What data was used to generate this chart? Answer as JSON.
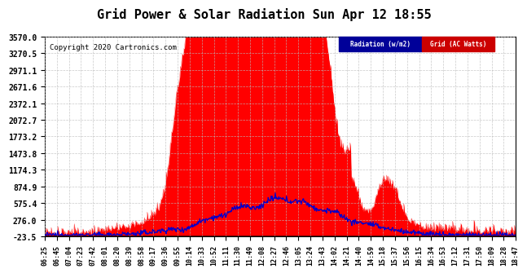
{
  "title": "Grid Power & Solar Radiation Sun Apr 12 18:55",
  "copyright": "Copyright 2020 Cartronics.com",
  "legend_items": [
    {
      "label": "Radiation (w/m2)",
      "facecolor": "#000099",
      "textcolor": "#ffffff"
    },
    {
      "label": "Grid (AC Watts)",
      "facecolor": "#cc0000",
      "textcolor": "#ffffff"
    }
  ],
  "yticks": [
    3570.0,
    3270.5,
    2971.1,
    2671.6,
    2372.1,
    2072.7,
    1773.2,
    1473.8,
    1174.3,
    874.9,
    575.4,
    276.0,
    -23.5
  ],
  "ymin": -23.5,
  "ymax": 3570.0,
  "xtick_labels": [
    "06:25",
    "06:45",
    "07:04",
    "07:23",
    "07:42",
    "08:01",
    "08:20",
    "08:39",
    "08:58",
    "09:17",
    "09:36",
    "09:55",
    "10:14",
    "10:33",
    "10:52",
    "11:11",
    "11:30",
    "11:49",
    "12:08",
    "12:27",
    "12:46",
    "13:05",
    "13:24",
    "13:43",
    "14:02",
    "14:21",
    "14:40",
    "14:59",
    "15:18",
    "15:37",
    "15:56",
    "16:15",
    "16:34",
    "16:53",
    "17:12",
    "17:31",
    "17:50",
    "18:09",
    "18:28",
    "18:47"
  ],
  "bg_color": "#ffffff",
  "grid_color": "#bbbbbb",
  "radiation_color": "#0000cc",
  "grid_power_color": "#ff0000",
  "title_fontsize": 11,
  "copyright_fontsize": 6.5,
  "tick_fontsize": 6,
  "ytick_fontsize": 7
}
